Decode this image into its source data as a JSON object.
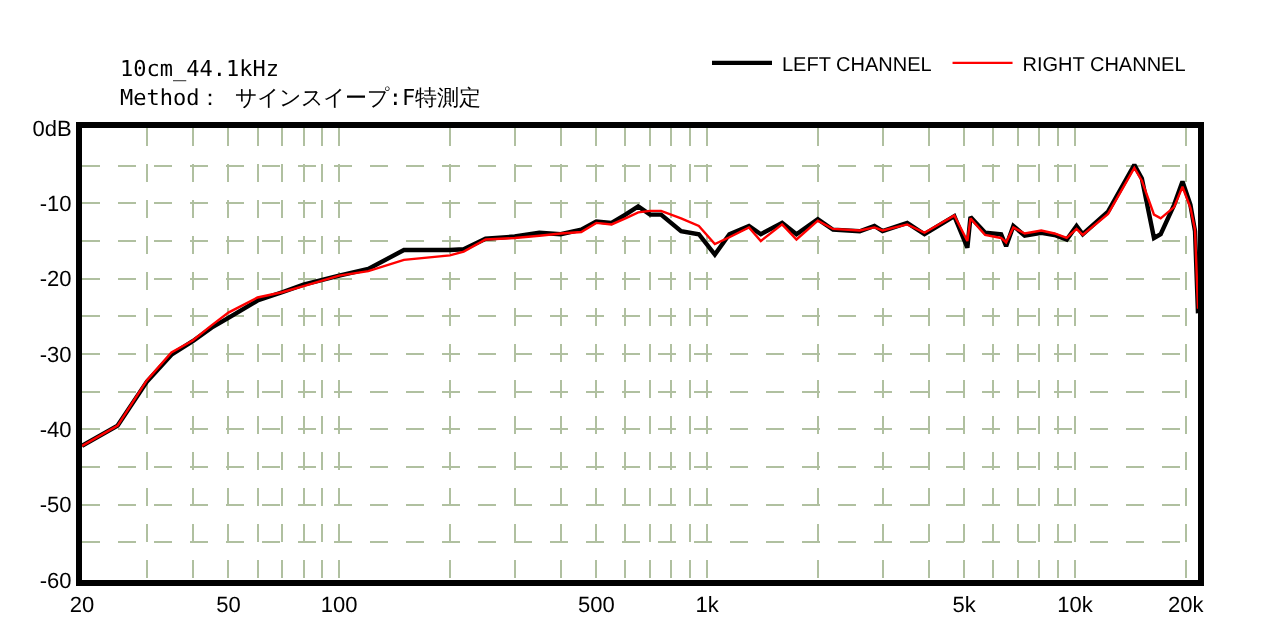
{
  "chart_data": {
    "type": "line",
    "subtitle": "10cm_44.1kHz\nMethod： サインスイープ:F特測定",
    "log": "x",
    "grid": true,
    "legend": "top right",
    "xlim": [
      20,
      21600
    ],
    "xticks": [
      20,
      {
        "value": 30,
        "label": null
      },
      {
        "value": 40,
        "label": null
      },
      50,
      {
        "value": 60,
        "label": null
      },
      {
        "value": 70,
        "label": null
      },
      {
        "value": 80,
        "label": null
      },
      {
        "value": 90,
        "label": null
      },
      100,
      {
        "value": 200,
        "label": null
      },
      {
        "value": 300,
        "label": null
      },
      {
        "value": 400,
        "label": null
      },
      500,
      {
        "value": 600,
        "label": null
      },
      {
        "value": 700,
        "label": null
      },
      {
        "value": 800,
        "label": null
      },
      {
        "value": 900,
        "label": null
      },
      {
        "value": 1000,
        "label": "1k"
      },
      {
        "value": 2000,
        "label": null
      },
      {
        "value": 3000,
        "label": null
      },
      {
        "value": 4000,
        "label": null
      },
      {
        "value": 5000,
        "label": "5k"
      },
      {
        "value": 6000,
        "label": null
      },
      {
        "value": 7000,
        "label": null
      },
      {
        "value": 8000,
        "label": null
      },
      {
        "value": 9000,
        "label": null
      },
      {
        "value": 10000,
        "label": "10k"
      },
      {
        "value": 20000,
        "label": "20k"
      }
    ],
    "ylim": [
      -60,
      0
    ],
    "yticks": [
      {
        "value": 0,
        "label": "0dB"
      },
      {
        "value": -5,
        "label": null
      },
      -10,
      {
        "value": -15,
        "label": null
      },
      -20,
      {
        "value": -25,
        "label": null
      },
      -30,
      {
        "value": -35,
        "label": null
      },
      -40,
      {
        "value": -45,
        "label": null
      },
      -50,
      {
        "value": -55,
        "label": null
      },
      -60
    ],
    "x": [
      20,
      25,
      30,
      35,
      40,
      45,
      50,
      60,
      70,
      80,
      100,
      120,
      150,
      200,
      218,
      250,
      300,
      350,
      400,
      455,
      500,
      550,
      600,
      650,
      700,
      750,
      850,
      950,
      1050,
      1150,
      1300,
      1400,
      1600,
      1750,
      2000,
      2200,
      2600,
      2850,
      3000,
      3500,
      3900,
      4700,
      5100,
      5200,
      5700,
      6300,
      6500,
      6800,
      7300,
      8100,
      8800,
      9500,
      10100,
      10500,
      12300,
      14500,
      15200,
      16400,
      17100,
      18600,
      19600,
      20600,
      21200,
      21600
    ],
    "series": [
      {
        "name": "LEFT CHANNEL",
        "color": "#000000",
        "values": [
          -42.2,
          -39.5,
          -33.7,
          -30.1,
          -28.3,
          -26.5,
          -25.2,
          -22.9,
          -21.8,
          -20.8,
          -19.6,
          -18.7,
          -16.2,
          -16.2,
          -16.1,
          -14.7,
          -14.4,
          -13.9,
          -14.1,
          -13.5,
          -12.4,
          -12.6,
          -11.5,
          -10.4,
          -11.5,
          -11.5,
          -13.7,
          -14.1,
          -16.8,
          -14.1,
          -13.0,
          -14.1,
          -12.6,
          -14.1,
          -12.1,
          -13.5,
          -13.7,
          -13.0,
          -13.7,
          -12.6,
          -14.1,
          -11.7,
          -15.9,
          -11.8,
          -13.9,
          -14.1,
          -15.7,
          -13.0,
          -14.3,
          -13.9,
          -14.2,
          -14.8,
          -13.0,
          -14.1,
          -11.1,
          -4.9,
          -6.7,
          -14.6,
          -14.1,
          -10.2,
          -7.1,
          -10.2,
          -13.7,
          -24.6
        ]
      },
      {
        "name": "RIGHT CHANNEL",
        "color": "#ff0000",
        "values": [
          -42.2,
          -39.5,
          -33.5,
          -29.8,
          -28.2,
          -26.2,
          -24.5,
          -22.5,
          -21.8,
          -21.0,
          -19.6,
          -19.0,
          -17.5,
          -16.9,
          -16.4,
          -14.8,
          -14.6,
          -14.3,
          -14.0,
          -13.8,
          -12.6,
          -12.8,
          -12.0,
          -11.2,
          -11.0,
          -11.0,
          -12.0,
          -13.0,
          -15.4,
          -14.5,
          -13.2,
          -15.0,
          -12.8,
          -14.8,
          -12.3,
          -13.4,
          -13.6,
          -13.2,
          -13.6,
          -12.8,
          -13.9,
          -11.6,
          -15.0,
          -12.0,
          -14.2,
          -14.6,
          -15.2,
          -13.2,
          -14.0,
          -13.6,
          -14.0,
          -14.6,
          -13.4,
          -14.2,
          -11.4,
          -5.3,
          -7.0,
          -11.5,
          -12.0,
          -10.5,
          -7.8,
          -10.6,
          -13.5,
          -24.0
        ]
      }
    ]
  }
}
